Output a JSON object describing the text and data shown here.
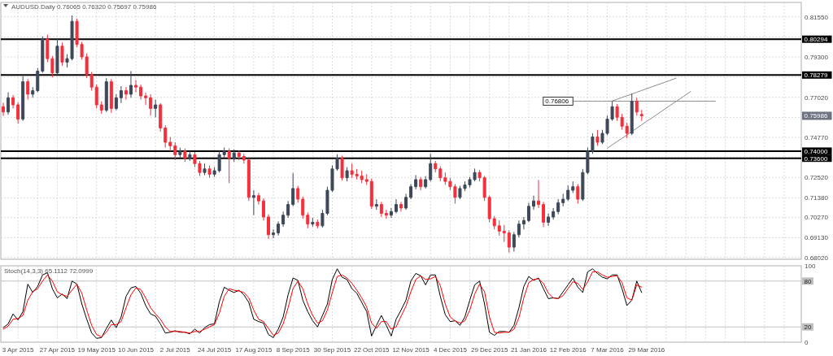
{
  "chart_data": [
    {
      "type": "candlestick",
      "title": "AUDUSD.Daily 0.76065 0.76320 0.75697 0.75986",
      "categories": [
        null,
        null,
        null,
        null,
        null,
        null,
        null,
        null,
        null,
        null,
        null,
        null,
        null,
        null,
        null,
        null,
        null,
        null,
        null,
        null,
        null,
        null,
        null,
        null,
        null,
        null,
        null,
        null,
        null,
        null,
        null,
        null,
        null,
        null,
        null,
        null,
        null,
        null,
        null,
        null,
        null,
        null,
        null,
        null,
        null,
        null,
        null,
        null,
        null,
        null,
        null,
        null,
        null,
        null,
        null,
        null,
        null,
        null,
        null,
        null,
        null,
        null,
        null,
        null,
        null,
        null,
        null,
        null,
        null,
        null,
        null,
        null,
        null,
        null,
        null,
        null,
        null,
        null,
        null,
        null,
        null,
        null,
        null,
        null,
        null,
        null,
        null,
        null,
        null,
        null,
        null,
        null,
        null,
        null,
        null,
        null,
        null,
        null,
        null,
        null,
        null,
        null,
        null,
        null,
        null,
        null,
        null,
        null,
        null,
        null,
        null,
        null,
        null,
        null,
        null,
        null,
        null,
        null,
        null,
        null,
        null,
        null,
        null,
        null,
        null,
        null,
        null,
        null,
        null,
        null,
        null,
        null,
        null,
        null,
        null,
        null,
        null,
        null,
        null,
        null,
        null,
        null,
        null,
        null,
        null,
        null,
        null,
        null,
        null,
        null,
        null,
        null,
        null,
        null,
        null,
        null,
        null,
        null,
        null,
        null,
        null,
        null,
        null
      ],
      "ohlc": [
        [
          0.765,
          0.7672,
          0.7598,
          0.762
        ],
        [
          0.762,
          0.7731,
          0.7605,
          0.77
        ],
        [
          0.77,
          0.7715,
          0.764,
          0.766
        ],
        [
          0.766,
          0.7675,
          0.7555,
          0.758
        ],
        [
          0.758,
          0.7822,
          0.757,
          0.779
        ],
        [
          0.779,
          0.7805,
          0.769,
          0.772
        ],
        [
          0.772,
          0.776,
          0.77,
          0.774
        ],
        [
          0.774,
          0.7867,
          0.773,
          0.785
        ],
        [
          0.785,
          0.8045,
          0.784,
          0.803
        ],
        [
          0.803,
          0.8055,
          0.79,
          0.792
        ],
        [
          0.792,
          0.7935,
          0.7815,
          0.784
        ],
        [
          0.784,
          0.803,
          0.783,
          0.799
        ],
        [
          0.799,
          0.801,
          0.788,
          0.79
        ],
        [
          0.79,
          0.7945,
          0.787,
          0.792
        ],
        [
          0.792,
          0.8163,
          0.791,
          0.813
        ],
        [
          0.813,
          0.8145,
          0.7985,
          0.8
        ],
        [
          0.8,
          0.8015,
          0.7915,
          0.793
        ],
        [
          0.793,
          0.795,
          0.781,
          0.783
        ],
        [
          0.783,
          0.7845,
          0.774,
          0.776
        ],
        [
          0.776,
          0.7775,
          0.764,
          0.766
        ],
        [
          0.766,
          0.768,
          0.761,
          0.763
        ],
        [
          0.763,
          0.781,
          0.762,
          0.779
        ],
        [
          0.779,
          0.7805,
          0.7615,
          0.764
        ],
        [
          0.764,
          0.772,
          0.763,
          0.77
        ],
        [
          0.77,
          0.7765,
          0.767,
          0.774
        ],
        [
          0.774,
          0.776,
          0.769,
          0.772
        ],
        [
          0.772,
          0.785,
          0.77,
          0.777
        ],
        [
          0.777,
          0.78,
          0.773,
          0.776
        ],
        [
          0.776,
          0.7775,
          0.769,
          0.771
        ],
        [
          0.771,
          0.773,
          0.766,
          0.77
        ],
        [
          0.77,
          0.772,
          0.76,
          0.764
        ],
        [
          0.764,
          0.769,
          0.759,
          0.766
        ],
        [
          0.766,
          0.767,
          0.751,
          0.753
        ],
        [
          0.753,
          0.7545,
          0.742,
          0.745
        ],
        [
          0.745,
          0.748,
          0.74,
          0.743
        ],
        [
          0.743,
          0.745,
          0.735,
          0.738
        ],
        [
          0.738,
          0.742,
          0.736,
          0.74
        ],
        [
          0.74,
          0.7415,
          0.734,
          0.736
        ],
        [
          0.736,
          0.74,
          0.7345,
          0.738
        ],
        [
          0.738,
          0.7395,
          0.731,
          0.733
        ],
        [
          0.733,
          0.7345,
          0.726,
          0.728
        ],
        [
          0.728,
          0.733,
          0.7265,
          0.73
        ],
        [
          0.73,
          0.732,
          0.725,
          0.727
        ],
        [
          0.727,
          0.731,
          0.7255,
          0.729
        ],
        [
          0.729,
          0.74,
          0.728,
          0.738
        ],
        [
          0.738,
          0.742,
          0.736,
          0.74
        ],
        [
          0.74,
          0.7415,
          0.722,
          0.736
        ],
        [
          0.736,
          0.741,
          0.734,
          0.739
        ],
        [
          0.739,
          0.7405,
          0.735,
          0.737
        ],
        [
          0.737,
          0.7385,
          0.733,
          0.735
        ],
        [
          0.735,
          0.736,
          0.712,
          0.714
        ],
        [
          0.714,
          0.718,
          0.704,
          0.715
        ],
        [
          0.715,
          0.7165,
          0.71,
          0.712
        ],
        [
          0.712,
          0.7135,
          0.701,
          0.703
        ],
        [
          0.703,
          0.7045,
          0.6906,
          0.693
        ],
        [
          0.693,
          0.696,
          0.691,
          0.694
        ],
        [
          0.694,
          0.7005,
          0.6925,
          0.699
        ],
        [
          0.699,
          0.706,
          0.6975,
          0.704
        ],
        [
          0.704,
          0.712,
          0.7025,
          0.71
        ],
        [
          0.71,
          0.7277,
          0.709,
          0.719
        ],
        [
          0.719,
          0.7205,
          0.711,
          0.713
        ],
        [
          0.713,
          0.7145,
          0.702,
          0.704
        ],
        [
          0.704,
          0.7055,
          0.6966,
          0.699
        ],
        [
          0.699,
          0.7025,
          0.6975,
          0.7
        ],
        [
          0.7,
          0.7015,
          0.6966,
          0.698
        ],
        [
          0.698,
          0.707,
          0.697,
          0.705
        ],
        [
          0.705,
          0.72,
          0.704,
          0.718
        ],
        [
          0.718,
          0.732,
          0.717,
          0.73
        ],
        [
          0.73,
          0.7382,
          0.729,
          0.736
        ],
        [
          0.736,
          0.7375,
          0.7235,
          0.725
        ],
        [
          0.725,
          0.731,
          0.723,
          0.729
        ],
        [
          0.729,
          0.733,
          0.725,
          0.727
        ],
        [
          0.727,
          0.73,
          0.724,
          0.726
        ],
        [
          0.726,
          0.729,
          0.722,
          0.724
        ],
        [
          0.724,
          0.727,
          0.721,
          0.723
        ],
        [
          0.723,
          0.7245,
          0.7075,
          0.709
        ],
        [
          0.709,
          0.713,
          0.707,
          0.71
        ],
        [
          0.71,
          0.7115,
          0.703,
          0.705
        ],
        [
          0.705,
          0.707,
          0.702,
          0.704
        ],
        [
          0.704,
          0.708,
          0.7025,
          0.706
        ],
        [
          0.706,
          0.713,
          0.705,
          0.71
        ],
        [
          0.71,
          0.7115,
          0.706,
          0.708
        ],
        [
          0.708,
          0.716,
          0.707,
          0.714
        ],
        [
          0.714,
          0.7215,
          0.713,
          0.72
        ],
        [
          0.72,
          0.7265,
          0.7185,
          0.724
        ],
        [
          0.724,
          0.7255,
          0.718,
          0.72
        ],
        [
          0.72,
          0.726,
          0.719,
          0.724
        ],
        [
          0.724,
          0.7385,
          0.723,
          0.733
        ],
        [
          0.733,
          0.7345,
          0.728,
          0.73
        ],
        [
          0.73,
          0.7315,
          0.723,
          0.725
        ],
        [
          0.725,
          0.728,
          0.721,
          0.723
        ],
        [
          0.723,
          0.725,
          0.718,
          0.72
        ],
        [
          0.72,
          0.7215,
          0.7105,
          0.714
        ],
        [
          0.714,
          0.7205,
          0.713,
          0.719
        ],
        [
          0.719,
          0.723,
          0.7175,
          0.721
        ],
        [
          0.721,
          0.7255,
          0.7195,
          0.724
        ],
        [
          0.724,
          0.7302,
          0.723,
          0.728
        ],
        [
          0.728,
          0.7295,
          0.723,
          0.725
        ],
        [
          0.725,
          0.726,
          0.712,
          0.714
        ],
        [
          0.714,
          0.715,
          0.7,
          0.702
        ],
        [
          0.702,
          0.7035,
          0.696,
          0.698
        ],
        [
          0.698,
          0.701,
          0.6925,
          0.695
        ],
        [
          0.695,
          0.6985,
          0.689,
          0.694
        ],
        [
          0.694,
          0.6955,
          0.6829,
          0.686
        ],
        [
          0.686,
          0.6945,
          0.6835,
          0.693
        ],
        [
          0.693,
          0.701,
          0.6915,
          0.699
        ],
        [
          0.699,
          0.703,
          0.696,
          0.701
        ],
        [
          0.701,
          0.711,
          0.7,
          0.709
        ],
        [
          0.709,
          0.715,
          0.707,
          0.712
        ],
        [
          0.712,
          0.7238,
          0.708,
          0.71
        ],
        [
          0.71,
          0.7115,
          0.6973,
          0.7
        ],
        [
          0.7,
          0.705,
          0.698,
          0.703
        ],
        [
          0.703,
          0.708,
          0.7015,
          0.706
        ],
        [
          0.706,
          0.713,
          0.7045,
          0.711
        ],
        [
          0.711,
          0.716,
          0.709,
          0.713
        ],
        [
          0.713,
          0.7207,
          0.712,
          0.718
        ],
        [
          0.718,
          0.723,
          0.7165,
          0.72
        ],
        [
          0.72,
          0.7215,
          0.7105,
          0.713
        ],
        [
          0.713,
          0.73,
          0.712,
          0.728
        ],
        [
          0.728,
          0.742,
          0.727,
          0.74
        ],
        [
          0.74,
          0.75,
          0.7385,
          0.748
        ],
        [
          0.748,
          0.752,
          0.743,
          0.745
        ],
        [
          0.745,
          0.752,
          0.744,
          0.75
        ],
        [
          0.75,
          0.76,
          0.749,
          0.758
        ],
        [
          0.758,
          0.7681,
          0.757,
          0.765
        ],
        [
          0.765,
          0.7665,
          0.757,
          0.759
        ],
        [
          0.759,
          0.761,
          0.752,
          0.754
        ],
        [
          0.754,
          0.756,
          0.7473,
          0.75
        ],
        [
          0.75,
          0.7724,
          0.749,
          0.768
        ],
        [
          0.768,
          0.77,
          0.76,
          0.762
        ],
        [
          0.76065,
          0.7632,
          0.75697,
          0.75986
        ],
        null,
        null,
        null,
        null,
        null,
        null,
        null,
        null,
        null,
        null,
        null,
        null,
        null,
        null,
        null,
        null,
        null,
        null,
        null,
        null,
        null,
        null,
        null,
        null,
        null,
        null,
        null,
        null,
        null,
        null,
        null,
        null
      ],
      "colors": [
        "#f2303c",
        "#3d4858",
        "#f2303c",
        "#f2303c",
        "#3d4858",
        "#f2303c",
        "#3d4858",
        "#3d4858",
        "#3d4858",
        "#f2303c",
        "#f2303c",
        "#3d4858",
        "#f2303c",
        "#3d4858",
        "#3d4858",
        "#f2303c",
        "#f2303c",
        "#f2303c",
        "#f2303c",
        "#f2303c",
        "#f2303c",
        "#3d4858",
        "#f2303c",
        "#3d4858",
        "#3d4858",
        "#f2303c",
        "#3d4858",
        "#f2303c",
        "#f2303c",
        "#f2303c",
        "#f2303c",
        "#3d4858",
        "#f2303c",
        "#f2303c",
        "#f2303c",
        "#f2303c",
        "#3d4858",
        "#f2303c",
        "#3d4858",
        "#f2303c",
        "#f2303c",
        "#3d4858",
        "#f2303c",
        "#3d4858",
        "#3d4858",
        "#3d4858",
        "#f2303c",
        "#3d4858",
        "#f2303c",
        "#f2303c",
        "#f2303c",
        "#3d4858",
        "#f2303c",
        "#f2303c",
        "#f2303c",
        "#3d4858",
        "#3d4858",
        "#3d4858",
        "#3d4858",
        "#3d4858",
        "#f2303c",
        "#f2303c",
        "#f2303c",
        "#3d4858",
        "#f2303c",
        "#3d4858",
        "#3d4858",
        "#3d4858",
        "#3d4858",
        "#f2303c",
        "#3d4858",
        "#f2303c",
        "#f2303c",
        "#f2303c",
        "#f2303c",
        "#f2303c",
        "#3d4858",
        "#f2303c",
        "#f2303c",
        "#3d4858",
        "#3d4858",
        "#f2303c",
        "#3d4858",
        "#3d4858",
        "#3d4858",
        "#f2303c",
        "#3d4858",
        "#3d4858",
        "#f2303c",
        "#f2303c",
        "#f2303c",
        "#f2303c",
        "#f2303c",
        "#3d4858",
        "#3d4858",
        "#3d4858",
        "#3d4858",
        "#f2303c",
        "#f2303c",
        "#f2303c",
        "#f2303c",
        "#f2303c",
        "#f2303c",
        "#f2303c",
        "#3d4858",
        "#3d4858",
        "#3d4858",
        "#3d4858",
        "#3d4858",
        "#f2303c",
        "#f2303c",
        "#3d4858",
        "#3d4858",
        "#3d4858",
        "#3d4858",
        "#3d4858",
        "#3d4858",
        "#f2303c",
        "#3d4858",
        "#3d4858",
        "#3d4858",
        "#f2303c",
        "#3d4858",
        "#3d4858",
        "#3d4858",
        "#f2303c",
        "#f2303c",
        "#f2303c",
        "#3d4858",
        "#f2303c",
        "#f2303c",
        null,
        null,
        null,
        null,
        null,
        null,
        null,
        null,
        null,
        null,
        null,
        null,
        null,
        null,
        null,
        null,
        null,
        null,
        null,
        null,
        null,
        null,
        null,
        null,
        null,
        null,
        null,
        null,
        null,
        null,
        null,
        null
      ],
      "series": [
        {
          "type": "line",
          "color": "#8c8c8c",
          "values": [
            null,
            null,
            null,
            null,
            null,
            null,
            null,
            null,
            null,
            null,
            null,
            null,
            null,
            null,
            null,
            null,
            null,
            null,
            null,
            null,
            null,
            null,
            null,
            null,
            null,
            null,
            null,
            null,
            null,
            null,
            null,
            null,
            null,
            null,
            null,
            null,
            null,
            null,
            null,
            null,
            null,
            null,
            null,
            null,
            null,
            null,
            null,
            null,
            null,
            null,
            null,
            null,
            null,
            null,
            null,
            null,
            null,
            null,
            null,
            null,
            null,
            null,
            null,
            null,
            null,
            null,
            null,
            null,
            null,
            null,
            null,
            null,
            null,
            null,
            null,
            null,
            null,
            null,
            null,
            null,
            null,
            null,
            null,
            null,
            null,
            null,
            null,
            null,
            null,
            null,
            null,
            null,
            null,
            null,
            null,
            null,
            null,
            null,
            null,
            null,
            null,
            null,
            null,
            null,
            null,
            null,
            null,
            null,
            null,
            null,
            null,
            null,
            null,
            null,
            null,
            null,
            0.7681,
            0.7681,
            0.7681,
            0.7681,
            0.7681,
            0.7681,
            0.7681,
            0.7681,
            0.7681,
            0.7681,
            0.7681,
            0.7681,
            0.7681,
            0.7681,
            0.7681,
            0.7681,
            0.7681,
            0.7681,
            0.7681,
            0.7681,
            0.7681,
            0.7681,
            0.7681,
            0.7681,
            0.7681,
            0.7681,
            0.7681,
            0.7681,
            0.7681,
            0.7681,
            null,
            null,
            null,
            null,
            null,
            null,
            null,
            null,
            null,
            null,
            null,
            null,
            null,
            null,
            null,
            null,
            null
          ]
        },
        {
          "type": "line",
          "color": "#8c8c8c",
          "values": [
            null,
            null,
            null,
            null,
            null,
            null,
            null,
            null,
            null,
            null,
            null,
            null,
            null,
            null,
            null,
            null,
            null,
            null,
            null,
            null,
            null,
            null,
            null,
            null,
            null,
            null,
            null,
            null,
            null,
            null,
            null,
            null,
            null,
            null,
            null,
            null,
            null,
            null,
            null,
            null,
            null,
            null,
            null,
            null,
            null,
            null,
            null,
            null,
            null,
            null,
            null,
            null,
            null,
            null,
            null,
            null,
            null,
            null,
            null,
            null,
            null,
            null,
            null,
            null,
            null,
            null,
            null,
            null,
            null,
            null,
            null,
            null,
            null,
            null,
            null,
            null,
            null,
            null,
            null,
            null,
            null,
            null,
            null,
            null,
            null,
            null,
            null,
            null,
            null,
            null,
            null,
            null,
            null,
            null,
            null,
            null,
            null,
            null,
            null,
            null,
            null,
            null,
            null,
            null,
            null,
            null,
            null,
            null,
            null,
            null,
            null,
            null,
            null,
            null,
            null,
            null,
            null,
            null,
            null,
            null,
            null,
            null,
            null,
            null,
            0.7682,
            0.7692,
            0.7702,
            0.7711,
            0.7721,
            0.7731,
            0.7741,
            0.7751,
            0.7761,
            0.7771,
            0.778,
            0.779,
            0.78,
            0.781,
            null,
            null,
            null,
            null,
            null,
            null,
            null,
            null,
            null,
            null,
            null,
            null,
            null,
            null,
            null,
            null,
            null,
            null,
            null,
            null,
            null,
            null,
            null,
            null,
            null
          ]
        },
        {
          "type": "line",
          "color": "#8c8c8c",
          "values": [
            null,
            null,
            null,
            null,
            null,
            null,
            null,
            null,
            null,
            null,
            null,
            null,
            null,
            null,
            null,
            null,
            null,
            null,
            null,
            null,
            null,
            null,
            null,
            null,
            null,
            null,
            null,
            null,
            null,
            null,
            null,
            null,
            null,
            null,
            null,
            null,
            null,
            null,
            null,
            null,
            null,
            null,
            null,
            null,
            null,
            null,
            null,
            null,
            null,
            null,
            null,
            null,
            null,
            null,
            null,
            null,
            null,
            null,
            null,
            null,
            null,
            null,
            null,
            null,
            null,
            null,
            null,
            null,
            null,
            null,
            null,
            null,
            null,
            null,
            null,
            null,
            null,
            null,
            null,
            null,
            null,
            null,
            null,
            null,
            null,
            null,
            null,
            null,
            null,
            null,
            null,
            null,
            null,
            null,
            null,
            null,
            null,
            null,
            null,
            null,
            null,
            null,
            null,
            null,
            null,
            null,
            null,
            null,
            null,
            null,
            null,
            null,
            null,
            null,
            null,
            null,
            null,
            null,
            null,
            null,
            null,
            null,
            null,
            0.7416,
            0.7435,
            0.7454,
            0.7472,
            0.7491,
            0.751,
            0.7529,
            0.7548,
            0.7567,
            0.7585,
            0.7604,
            0.7623,
            0.7642,
            0.7661,
            0.7679,
            0.7698,
            0.7717,
            0.7736,
            null,
            null,
            null,
            null,
            null,
            null,
            null,
            null,
            null,
            null,
            null,
            null,
            null,
            null,
            null,
            null,
            null,
            null,
            null,
            null,
            null,
            null
          ]
        }
      ],
      "ylim": [
        0.6792,
        0.8236
      ],
      "yticks": [
        {
          "value": 0.8155,
          "label": "0.81550"
        },
        {
          "value": 0.8042,
          "label": null
        },
        {
          "value": 0.793,
          "label": "0.79300"
        },
        {
          "value": 0.7817,
          "label": null
        },
        {
          "value": 0.7702,
          "label": "0.77020"
        },
        {
          "value": 0.7589,
          "label": null
        },
        {
          "value": 0.7477,
          "label": "0.74770"
        },
        {
          "value": 0.7364,
          "label": null
        },
        {
          "value": 0.7252,
          "label": "0.72520"
        },
        {
          "value": 0.7138,
          "label": "0.71380"
        },
        {
          "value": 0.7027,
          "label": "0.70270"
        },
        {
          "value": 0.6913,
          "label": "0.69130"
        },
        {
          "value": 0.6802,
          "label": "0.68020"
        }
      ],
      "grid": true,
      "ref_lines": [
        {
          "axis": "y",
          "value": 0.80294,
          "label": "0.80294",
          "color": "#000000"
        },
        {
          "axis": "y",
          "value": 0.78279,
          "label": "0.78279",
          "color": "#000000"
        },
        {
          "axis": "y",
          "value": 0.74,
          "label": "0.74000",
          "color": "#000000"
        },
        {
          "axis": "y",
          "value": 0.736,
          "label": "0.73600",
          "color": "#000000"
        }
      ],
      "annotations": [
        "0.76806",
        "0.75986"
      ]
    },
    {
      "type": "line",
      "title": "Stoch(14,3,3) 65.1112 72.0999",
      "categories": [
        null,
        null,
        null,
        "3 Apr 2015",
        null,
        null,
        null,
        null,
        null,
        null,
        null,
        "27 Apr 2015",
        null,
        null,
        null,
        null,
        null,
        null,
        null,
        "19 May 2015",
        null,
        null,
        null,
        null,
        null,
        null,
        null,
        "10 Jun 2015",
        null,
        null,
        null,
        null,
        null,
        null,
        null,
        "2 Jul 2015",
        null,
        null,
        null,
        null,
        null,
        null,
        null,
        "24 Jul 2015",
        null,
        null,
        null,
        null,
        null,
        null,
        null,
        "17 Aug 2015",
        null,
        null,
        null,
        null,
        null,
        null,
        null,
        "8 Sep 2015",
        null,
        null,
        null,
        null,
        null,
        null,
        null,
        "30 Sep 2015",
        null,
        null,
        null,
        null,
        null,
        null,
        null,
        "22 Oct 2015",
        null,
        null,
        null,
        null,
        null,
        null,
        null,
        "12 Nov 2015",
        null,
        null,
        null,
        null,
        null,
        null,
        null,
        "4 Dec 2015",
        null,
        null,
        null,
        null,
        null,
        null,
        null,
        "29 Dec 2015",
        null,
        null,
        null,
        null,
        null,
        null,
        null,
        "21 Jan 2016",
        null,
        null,
        null,
        null,
        null,
        null,
        null,
        "12 Feb 2016",
        null,
        null,
        null,
        null,
        null,
        null,
        null,
        "7 Mar 2016",
        null,
        null,
        null,
        null,
        null,
        null,
        null,
        "29 Mar 2016",
        null,
        null,
        null,
        null,
        null,
        null,
        null,
        null,
        null,
        null,
        null,
        null,
        null,
        null,
        null,
        null,
        null,
        null,
        null,
        null,
        null,
        null,
        null,
        null,
        null,
        null,
        null,
        null,
        null,
        null,
        null
      ],
      "series": [
        {
          "color": "#000000",
          "values": [
            19,
            24,
            37,
            29,
            40,
            76,
            65,
            73,
            88,
            91,
            70,
            58,
            63,
            57,
            80,
            76,
            50,
            30,
            12,
            5,
            6,
            18,
            29,
            19,
            33,
            60,
            71,
            73,
            64,
            48,
            37,
            34,
            24,
            12,
            13,
            15,
            13,
            13,
            11,
            17,
            12,
            19,
            23,
            24,
            53,
            72,
            68,
            65,
            68,
            62,
            52,
            30,
            27,
            25,
            10,
            6,
            17,
            33,
            62,
            84,
            81,
            55,
            40,
            28,
            20,
            35,
            50,
            82,
            96,
            85,
            82,
            70,
            64,
            52,
            40,
            8,
            22,
            35,
            22,
            8,
            30,
            42,
            55,
            80,
            90,
            87,
            75,
            88,
            88,
            60,
            36,
            27,
            28,
            22,
            33,
            55,
            75,
            80,
            50,
            13,
            9,
            14,
            14,
            13,
            22,
            45,
            73,
            86,
            81,
            84,
            70,
            57,
            58,
            57,
            66,
            75,
            84,
            72,
            65,
            92,
            96,
            90,
            85,
            83,
            88,
            88,
            70,
            48,
            55,
            80,
            65,
            null,
            null,
            null,
            null,
            null,
            null,
            null,
            null,
            null,
            null,
            null,
            null,
            null,
            null,
            null,
            null,
            null,
            null,
            null,
            null,
            null,
            null,
            null,
            null,
            null,
            null,
            null,
            null,
            null,
            null,
            null,
            null
          ]
        },
        {
          "color": "#ff0000",
          "values": [
            17,
            21,
            30,
            31,
            35,
            55,
            66,
            70,
            80,
            88,
            80,
            66,
            62,
            60,
            68,
            76,
            64,
            42,
            22,
            10,
            7,
            13,
            23,
            23,
            27,
            45,
            62,
            71,
            69,
            58,
            45,
            37,
            30,
            20,
            14,
            14,
            14,
            13,
            12,
            14,
            14,
            17,
            20,
            23,
            38,
            60,
            70,
            68,
            67,
            65,
            58,
            42,
            30,
            27,
            18,
            9,
            12,
            24,
            45,
            70,
            80,
            70,
            50,
            35,
            25,
            28,
            42,
            65,
            86,
            88,
            84,
            77,
            68,
            58,
            46,
            25,
            18,
            27,
            27,
            17,
            20,
            34,
            47,
            66,
            82,
            87,
            82,
            83,
            86,
            74,
            50,
            33,
            28,
            25,
            28,
            42,
            63,
            76,
            66,
            33,
            13,
            12,
            13,
            13,
            17,
            32,
            58,
            78,
            82,
            83,
            77,
            64,
            58,
            57,
            61,
            70,
            79,
            77,
            69,
            79,
            92,
            92,
            88,
            85,
            86,
            87,
            78,
            58,
            55,
            75,
            72,
            null,
            null,
            null,
            null,
            null,
            null,
            null,
            null,
            null,
            null,
            null,
            null,
            null,
            null,
            null,
            null,
            null,
            null,
            null,
            null,
            null,
            null,
            null,
            null,
            null,
            null,
            null,
            null,
            null,
            null,
            null,
            null
          ]
        }
      ],
      "ylim": [
        0,
        100
      ],
      "yticks": [
        0,
        100
      ],
      "grid": "x",
      "ref_lines": [
        {
          "axis": "y",
          "value": 20,
          "label": "20",
          "color": "#c0c0c0"
        },
        {
          "axis": "y",
          "value": 80,
          "label": "80",
          "color": "#c0c0c0"
        }
      ]
    }
  ]
}
